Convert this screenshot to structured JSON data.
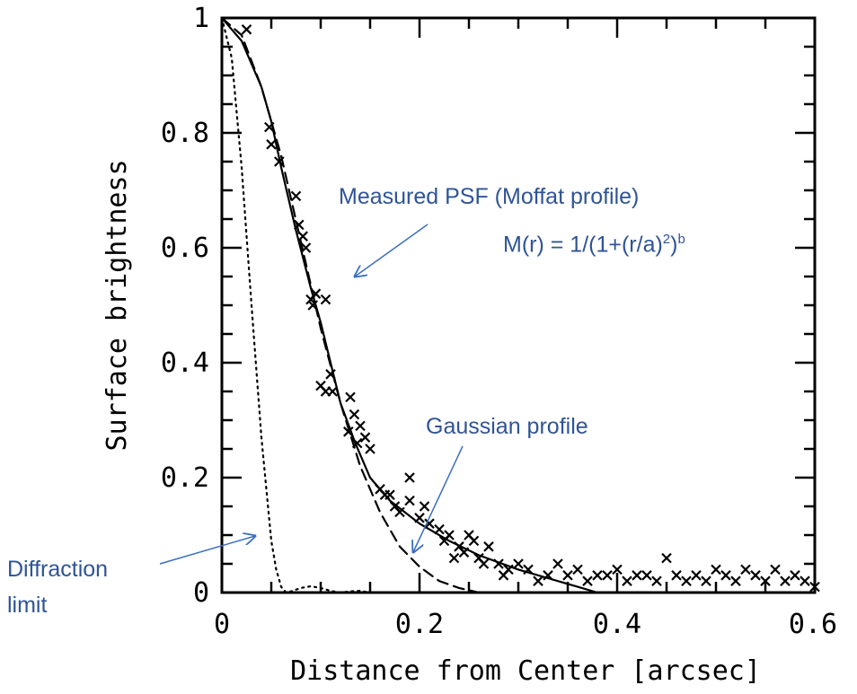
{
  "chart_data": {
    "type": "line",
    "xlabel": "Distance from Center [arcsec]",
    "ylabel": "Surface brightness",
    "xlim": [
      0,
      0.6
    ],
    "ylim": [
      0,
      1
    ],
    "xticks": [
      "0",
      "0.2",
      "0.4",
      "0.6"
    ],
    "yticks": [
      "0",
      "0.2",
      "0.4",
      "0.6",
      "0.8",
      "1"
    ],
    "grid": false,
    "series": [
      {
        "style": "solid",
        "x": [
          0,
          0.02,
          0.04,
          0.05,
          0.06,
          0.075,
          0.09,
          0.1,
          0.11,
          0.12,
          0.135,
          0.15,
          0.17,
          0.2,
          0.23,
          0.26,
          0.3,
          0.33,
          0.36,
          0.38
        ],
        "y": [
          1,
          0.96,
          0.88,
          0.82,
          0.74,
          0.63,
          0.53,
          0.47,
          0.4,
          0.33,
          0.26,
          0.2,
          0.16,
          0.12,
          0.09,
          0.065,
          0.04,
          0.025,
          0.01,
          0
        ]
      },
      {
        "style": "dashed",
        "x": [
          0,
          0.02,
          0.04,
          0.06,
          0.08,
          0.1,
          0.12,
          0.14,
          0.16,
          0.18,
          0.2,
          0.22,
          0.24,
          0.26
        ],
        "y": [
          1,
          0.97,
          0.88,
          0.76,
          0.61,
          0.46,
          0.33,
          0.22,
          0.14,
          0.08,
          0.045,
          0.02,
          0.008,
          0
        ]
      },
      {
        "style": "dotted",
        "x": [
          0,
          0.01,
          0.02,
          0.03,
          0.04,
          0.05,
          0.055,
          0.06,
          0.065,
          0.07,
          0.08,
          0.09,
          0.1,
          0.11,
          0.12,
          0.13,
          0.14,
          0.15
        ],
        "y": [
          1,
          0.93,
          0.74,
          0.5,
          0.27,
          0.09,
          0.04,
          0.01,
          0,
          0.002,
          0.008,
          0.011,
          0.008,
          0.003,
          0,
          0.002,
          0.003,
          0
        ]
      },
      {
        "style": "scatter",
        "marker": "x",
        "x": [
          0.025,
          0.048,
          0.05,
          0.058,
          0.075,
          0.078,
          0.082,
          0.085,
          0.09,
          0.092,
          0.095,
          0.105,
          0.1,
          0.11,
          0.112,
          0.105,
          0.13,
          0.134,
          0.128,
          0.137,
          0.14,
          0.145,
          0.15,
          0.16,
          0.165,
          0.17,
          0.175,
          0.18,
          0.19,
          0.19,
          0.2,
          0.205,
          0.21,
          0.22,
          0.225,
          0.23,
          0.235,
          0.24,
          0.245,
          0.25,
          0.255,
          0.26,
          0.265,
          0.27,
          0.28,
          0.285,
          0.29,
          0.3,
          0.31,
          0.32,
          0.33,
          0.34,
          0.35,
          0.36,
          0.37,
          0.38,
          0.39,
          0.4,
          0.41,
          0.42,
          0.43,
          0.44,
          0.45,
          0.46,
          0.47,
          0.48,
          0.49,
          0.5,
          0.51,
          0.52,
          0.53,
          0.54,
          0.55,
          0.56,
          0.57,
          0.58,
          0.59,
          0.6
        ],
        "y": [
          0.98,
          0.81,
          0.78,
          0.75,
          0.69,
          0.64,
          0.62,
          0.6,
          0.51,
          0.5,
          0.52,
          0.51,
          0.36,
          0.38,
          0.35,
          0.35,
          0.34,
          0.31,
          0.28,
          0.26,
          0.29,
          0.27,
          0.25,
          0.18,
          0.17,
          0.17,
          0.15,
          0.14,
          0.2,
          0.16,
          0.13,
          0.15,
          0.12,
          0.11,
          0.09,
          0.1,
          0.06,
          0.08,
          0.07,
          0.1,
          0.09,
          0.06,
          0.05,
          0.08,
          0.05,
          0.03,
          0.04,
          0.05,
          0.04,
          0.02,
          0.03,
          0.05,
          0.03,
          0.04,
          0.02,
          0.03,
          0.03,
          0.04,
          0.02,
          0.03,
          0.03,
          0.02,
          0.06,
          0.03,
          0.02,
          0.03,
          0.02,
          0.04,
          0.03,
          0.02,
          0.04,
          0.03,
          0.02,
          0.04,
          0.02,
          0.03,
          0.02,
          0.01
        ]
      }
    ],
    "annotations": {
      "moffat": "Measured PSF (Moffat profile)",
      "formula_main": "M(r) = 1/(1+(r/a)",
      "formula_sup2": "2",
      "formula_close": ")",
      "formula_supb": "b",
      "gaussian": "Gaussian profile",
      "diffraction_line1": "Diffraction",
      "diffraction_line2": "limit"
    },
    "annotation_color": "#2f5496"
  }
}
